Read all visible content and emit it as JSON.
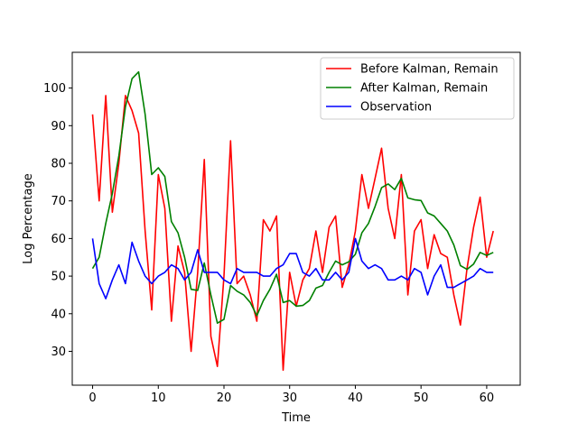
{
  "chart_data": {
    "type": "line",
    "title": "",
    "xlabel": "Time",
    "ylabel": "Log Percentage",
    "xlim": [
      -3.1,
      65.1
    ],
    "ylim": [
      21,
      109.5
    ],
    "xticks": [
      0,
      10,
      20,
      30,
      40,
      50,
      60
    ],
    "yticks": [
      30,
      40,
      50,
      60,
      70,
      80,
      90,
      100
    ],
    "grid": false,
    "legend_position": "upper right",
    "series": [
      {
        "name": "Before Kalman, Remain",
        "color": "#ff0000",
        "values": [
          93,
          70,
          98,
          67,
          80,
          98,
          94,
          88,
          62,
          41,
          77,
          68,
          38,
          58,
          51,
          30,
          51,
          81,
          34,
          26,
          50,
          86,
          48,
          50,
          45,
          38,
          65,
          62,
          66,
          25,
          51,
          42,
          49,
          52,
          62,
          51,
          63,
          66,
          47,
          53,
          62,
          77,
          68,
          76,
          84,
          68,
          60,
          77,
          45,
          62,
          65,
          52,
          61,
          56,
          55,
          45,
          37,
          52,
          63,
          71,
          55,
          62
        ]
      },
      {
        "name": "After Kalman, Remain",
        "color": "#008000",
        "values": [
          52,
          55,
          64,
          72,
          82,
          95,
          102.5,
          104.3,
          93,
          77,
          78.8,
          76.5,
          64.5,
          61.5,
          55,
          46.5,
          46.2,
          53.5,
          45,
          37.5,
          38.5,
          47.5,
          46,
          45,
          43,
          39.5,
          43.5,
          46.5,
          50.5,
          43,
          43.5,
          42,
          42.2,
          43.5,
          46.8,
          47.5,
          51,
          54,
          53,
          53.8,
          55.8,
          61.5,
          64,
          68.5,
          73.5,
          74.5,
          73,
          76,
          70.8,
          70.3,
          70.1,
          66.8,
          66,
          64,
          62,
          58.3,
          52.8,
          51.8,
          53.2,
          56.3,
          55.5,
          56.3
        ]
      },
      {
        "name": "Observation",
        "color": "#0000ff",
        "values": [
          60,
          48,
          44,
          49,
          53,
          48,
          59,
          54,
          50,
          48,
          50,
          51,
          53,
          52,
          49,
          51,
          57,
          51,
          51,
          51,
          49,
          48,
          52,
          51,
          51,
          51,
          50,
          50,
          52,
          53,
          56,
          56,
          51,
          50,
          52,
          49,
          49,
          51,
          49,
          51,
          60,
          54,
          52,
          53,
          52,
          49,
          49,
          50,
          49,
          52,
          51,
          45,
          50,
          53,
          47,
          47,
          48,
          49,
          50,
          52,
          51,
          51
        ]
      }
    ]
  }
}
